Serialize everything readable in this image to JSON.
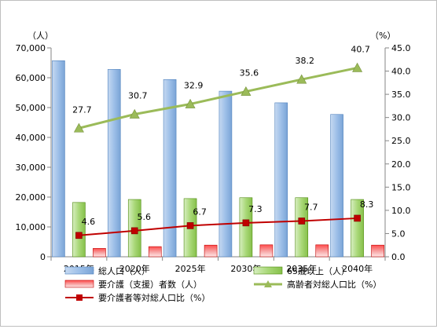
{
  "chart_data": {
    "type": "bar",
    "categories": [
      "2015年",
      "2020年",
      "2025年",
      "2030年",
      "2035年",
      "2040年"
    ],
    "y_left_unit": "（人）",
    "y_right_unit": "（%）",
    "y_left_ticks": [
      "0",
      "10,000",
      "20,000",
      "30,000",
      "40,000",
      "50,000",
      "60,000",
      "70,000"
    ],
    "y_right_ticks": [
      "0.0",
      "5.0",
      "10.0",
      "15.0",
      "20.0",
      "25.0",
      "30.0",
      "35.0",
      "40.0",
      "45.0"
    ],
    "y_left_range": [
      0,
      70000
    ],
    "y_right_range": [
      0,
      45
    ],
    "grid": false,
    "legend_position": "bottom",
    "series": [
      {
        "name": "総人口（人）",
        "kind": "bar",
        "axis": "left",
        "color": "#8eb4e3",
        "values": [
          65700,
          62800,
          59400,
          55500,
          51600,
          47700
        ]
      },
      {
        "name": "65歳以上（人）",
        "kind": "bar",
        "axis": "left",
        "color": "#92d050",
        "values": [
          18200,
          19200,
          19500,
          19800,
          19800,
          19200
        ]
      },
      {
        "name": "要介護（支援）者数（人）",
        "kind": "bar",
        "axis": "left",
        "color": "#e03030",
        "values": [
          2800,
          3400,
          3900,
          4000,
          4000,
          3900
        ]
      },
      {
        "name": "高齢者対総人口比（%）",
        "kind": "line",
        "axis": "right",
        "color": "#9bbb59",
        "marker": "triangle",
        "values": [
          27.7,
          30.7,
          32.9,
          35.6,
          38.2,
          40.7
        ],
        "labels": [
          "27.7",
          "30.7",
          "32.9",
          "35.6",
          "38.2",
          "40.7"
        ]
      },
      {
        "name": "要介護者等対総人口比（%）",
        "kind": "line",
        "axis": "right",
        "color": "#c00000",
        "marker": "square",
        "values": [
          4.6,
          5.6,
          6.7,
          7.3,
          7.7,
          8.3
        ],
        "labels": [
          "4.6",
          "5.6",
          "6.7",
          "7.3",
          "7.7",
          "8.3"
        ]
      }
    ]
  }
}
